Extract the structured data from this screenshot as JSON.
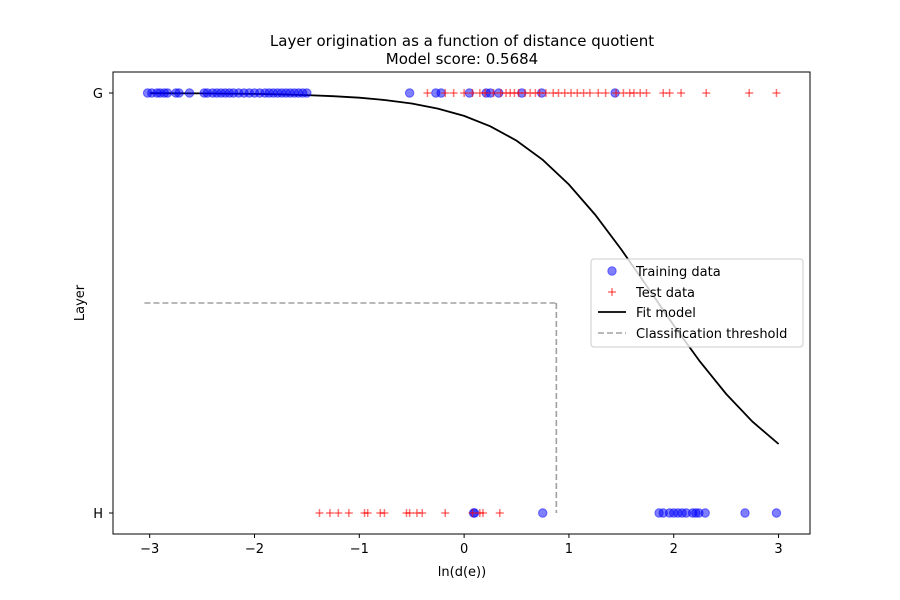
{
  "chart_data": {
    "type": "scatter",
    "title": "Layer origination as a function of distance quotient",
    "subtitle": "Model score: 0.5684",
    "xlabel": "ln(d(e))",
    "ylabel": "Layer",
    "xlim": [
      -3.35,
      3.3
    ],
    "ylim": [
      -0.05,
      1.05
    ],
    "x_ticks": [
      -3,
      -2,
      -1,
      0,
      1,
      2,
      3
    ],
    "x_tick_labels": [
      "−3",
      "−2",
      "−1",
      "0",
      "1",
      "2",
      "3"
    ],
    "y_ticks": [
      0,
      1
    ],
    "y_tick_labels": [
      "H",
      "G"
    ],
    "grid": false,
    "legend_position": "center-right",
    "series": [
      {
        "name": "Training data",
        "marker": "circle",
        "color": "#0000ff",
        "points": [
          {
            "x": -3.02,
            "y": 1
          },
          {
            "x": -2.98,
            "y": 1
          },
          {
            "x": -2.93,
            "y": 1
          },
          {
            "x": -2.9,
            "y": 1
          },
          {
            "x": -2.86,
            "y": 1
          },
          {
            "x": -2.83,
            "y": 1
          },
          {
            "x": -2.75,
            "y": 1
          },
          {
            "x": -2.72,
            "y": 1
          },
          {
            "x": -2.62,
            "y": 1
          },
          {
            "x": -2.48,
            "y": 1
          },
          {
            "x": -2.45,
            "y": 1
          },
          {
            "x": -2.4,
            "y": 1
          },
          {
            "x": -2.36,
            "y": 1
          },
          {
            "x": -2.32,
            "y": 1
          },
          {
            "x": -2.28,
            "y": 1
          },
          {
            "x": -2.24,
            "y": 1
          },
          {
            "x": -2.2,
            "y": 1
          },
          {
            "x": -2.15,
            "y": 1
          },
          {
            "x": -2.1,
            "y": 1
          },
          {
            "x": -2.05,
            "y": 1
          },
          {
            "x": -2.0,
            "y": 1
          },
          {
            "x": -1.95,
            "y": 1
          },
          {
            "x": -1.9,
            "y": 1
          },
          {
            "x": -1.86,
            "y": 1
          },
          {
            "x": -1.82,
            "y": 1
          },
          {
            "x": -1.78,
            "y": 1
          },
          {
            "x": -1.74,
            "y": 1
          },
          {
            "x": -1.7,
            "y": 1
          },
          {
            "x": -1.66,
            "y": 1
          },
          {
            "x": -1.62,
            "y": 1
          },
          {
            "x": -1.58,
            "y": 1
          },
          {
            "x": -1.54,
            "y": 1
          },
          {
            "x": -1.5,
            "y": 1
          },
          {
            "x": -0.52,
            "y": 1
          },
          {
            "x": -0.27,
            "y": 1
          },
          {
            "x": -0.22,
            "y": 1
          },
          {
            "x": 0.05,
            "y": 1
          },
          {
            "x": 0.21,
            "y": 1
          },
          {
            "x": 0.25,
            "y": 1
          },
          {
            "x": 0.33,
            "y": 1
          },
          {
            "x": 0.55,
            "y": 1
          },
          {
            "x": 0.74,
            "y": 1
          },
          {
            "x": 1.44,
            "y": 1
          },
          {
            "x": 0.09,
            "y": 0
          },
          {
            "x": 0.1,
            "y": 0
          },
          {
            "x": 0.75,
            "y": 0
          },
          {
            "x": 1.86,
            "y": 0
          },
          {
            "x": 1.9,
            "y": 0
          },
          {
            "x": 1.96,
            "y": 0
          },
          {
            "x": 2.0,
            "y": 0
          },
          {
            "x": 2.04,
            "y": 0
          },
          {
            "x": 2.08,
            "y": 0
          },
          {
            "x": 2.12,
            "y": 0
          },
          {
            "x": 2.18,
            "y": 0
          },
          {
            "x": 2.21,
            "y": 0
          },
          {
            "x": 2.24,
            "y": 0
          },
          {
            "x": 2.3,
            "y": 0
          },
          {
            "x": 2.68,
            "y": 0
          },
          {
            "x": 2.98,
            "y": 0
          }
        ]
      },
      {
        "name": "Test data",
        "marker": "plus",
        "color": "#ff0000",
        "points": [
          {
            "x": -0.35,
            "y": 1
          },
          {
            "x": -0.18,
            "y": 1
          },
          {
            "x": -0.1,
            "y": 1
          },
          {
            "x": 0.0,
            "y": 1
          },
          {
            "x": 0.08,
            "y": 1
          },
          {
            "x": 0.15,
            "y": 1
          },
          {
            "x": 0.2,
            "y": 1
          },
          {
            "x": 0.28,
            "y": 1
          },
          {
            "x": 0.35,
            "y": 1
          },
          {
            "x": 0.4,
            "y": 1
          },
          {
            "x": 0.44,
            "y": 1
          },
          {
            "x": 0.48,
            "y": 1
          },
          {
            "x": 0.52,
            "y": 1
          },
          {
            "x": 0.58,
            "y": 1
          },
          {
            "x": 0.63,
            "y": 1
          },
          {
            "x": 0.68,
            "y": 1
          },
          {
            "x": 0.72,
            "y": 1
          },
          {
            "x": 0.78,
            "y": 1
          },
          {
            "x": 0.85,
            "y": 1
          },
          {
            "x": 0.9,
            "y": 1
          },
          {
            "x": 0.96,
            "y": 1
          },
          {
            "x": 1.02,
            "y": 1
          },
          {
            "x": 1.08,
            "y": 1
          },
          {
            "x": 1.14,
            "y": 1
          },
          {
            "x": 1.2,
            "y": 1
          },
          {
            "x": 1.28,
            "y": 1
          },
          {
            "x": 1.35,
            "y": 1
          },
          {
            "x": 1.45,
            "y": 1
          },
          {
            "x": 1.52,
            "y": 1
          },
          {
            "x": 1.58,
            "y": 1
          },
          {
            "x": 1.62,
            "y": 1
          },
          {
            "x": 1.68,
            "y": 1
          },
          {
            "x": 1.74,
            "y": 1
          },
          {
            "x": 1.9,
            "y": 1
          },
          {
            "x": 1.96,
            "y": 1
          },
          {
            "x": 2.07,
            "y": 1
          },
          {
            "x": 2.31,
            "y": 1
          },
          {
            "x": 2.72,
            "y": 1
          },
          {
            "x": 2.98,
            "y": 1
          },
          {
            "x": -1.38,
            "y": 0
          },
          {
            "x": -1.28,
            "y": 0
          },
          {
            "x": -1.2,
            "y": 0
          },
          {
            "x": -1.1,
            "y": 0
          },
          {
            "x": -0.95,
            "y": 0
          },
          {
            "x": -0.92,
            "y": 0
          },
          {
            "x": -0.8,
            "y": 0
          },
          {
            "x": -0.76,
            "y": 0
          },
          {
            "x": -0.55,
            "y": 0
          },
          {
            "x": -0.52,
            "y": 0
          },
          {
            "x": -0.45,
            "y": 0
          },
          {
            "x": -0.4,
            "y": 0
          },
          {
            "x": -0.18,
            "y": 0
          },
          {
            "x": 0.08,
            "y": 0
          },
          {
            "x": 0.15,
            "y": 0
          },
          {
            "x": 0.18,
            "y": 0
          },
          {
            "x": 0.34,
            "y": 0
          }
        ]
      },
      {
        "name": "Fit model",
        "style": "line",
        "color": "#000000",
        "x": [
          -3.0,
          -2.75,
          -2.5,
          -2.25,
          -2.0,
          -1.75,
          -1.5,
          -1.25,
          -1.0,
          -0.75,
          -0.5,
          -0.25,
          0.0,
          0.25,
          0.5,
          0.75,
          1.0,
          1.25,
          1.5,
          1.75,
          2.0,
          2.25,
          2.5,
          2.75,
          3.0
        ],
        "y": [
          0.9995,
          0.9993,
          0.999,
          0.9985,
          0.9978,
          0.9967,
          0.995,
          0.9925,
          0.9888,
          0.9832,
          0.975,
          0.9629,
          0.9455,
          0.9208,
          0.8866,
          0.8409,
          0.7822,
          0.7104,
          0.6274,
          0.5378,
          0.447,
          0.3606,
          0.2833,
          0.2176,
          0.1643
        ]
      },
      {
        "name": "Classification threshold",
        "style": "dashed",
        "color": "#a0a0a0",
        "threshold_x": 0.88,
        "threshold_y": 0.5
      }
    ]
  }
}
